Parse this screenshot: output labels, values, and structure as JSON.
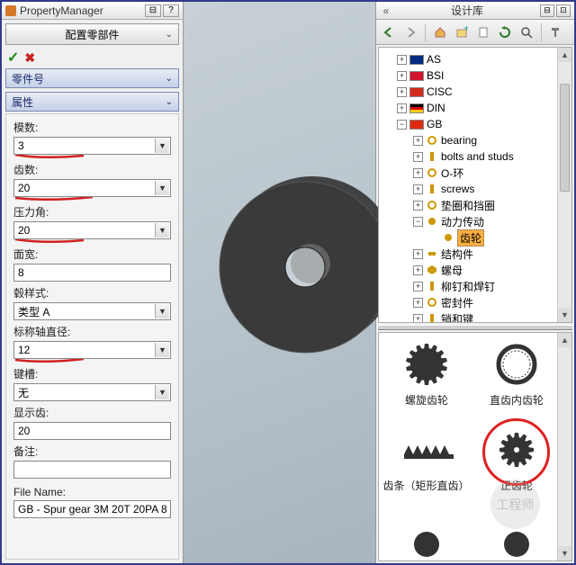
{
  "pm": {
    "title": "PropertyManager",
    "config_title": "配置零部件",
    "part_number_title": "零件号",
    "properties_title": "属性",
    "ok": "✓",
    "cancel": "✖",
    "fields": {
      "module": {
        "label": "模数:",
        "value": "3",
        "marked": true
      },
      "teeth": {
        "label": "齿数:",
        "value": "20",
        "marked": true
      },
      "pressure_angle": {
        "label": "压力角:",
        "value": "20",
        "marked": true
      },
      "face_width": {
        "label": "面宽:",
        "value": "8",
        "marked": false
      },
      "hub_style": {
        "label": "毂样式:",
        "value": "类型 A",
        "marked": false
      },
      "nominal_shaft_dia": {
        "label": "标称轴直径:",
        "value": "12",
        "marked": true
      },
      "keyway": {
        "label": "键槽:",
        "value": "无",
        "marked": false
      },
      "show_teeth": {
        "label": "显示齿:",
        "value": "20",
        "marked": false
      },
      "notes": {
        "label": "备注:",
        "value": "",
        "marked": false
      },
      "filename": {
        "label": "File Name:",
        "value": "GB - Spur gear 3M 20T 20PA 8",
        "marked": false
      }
    }
  },
  "lib": {
    "title": "设计库",
    "tree": {
      "as": "AS",
      "bsi": "BSI",
      "cisc": "CISC",
      "din": "DIN",
      "gb": "GB",
      "gb_children": {
        "bearing": "bearing",
        "bolts": "bolts and studs",
        "oring": "O-环",
        "screws": "screws",
        "washers": "垫圈和挡圈",
        "power": "动力传动",
        "gear": "齿轮",
        "struct": "结构件",
        "nut": "螺母",
        "rivets": "柳钉和焊钉",
        "seals": "密封件",
        "pins": "销和键"
      }
    },
    "flags": {
      "as": "#002b7f",
      "bsi": "#cf142b",
      "cisc": "#d52b1e",
      "din": "#000000",
      "gb": "#de2910"
    },
    "preview": {
      "helical": "螺旋齿轮",
      "internal": "直齿内齿轮",
      "rack": "齿条（矩形直齿）",
      "spur": "正齿轮"
    }
  },
  "colors": {
    "accent_red": "#d22020",
    "highlight": "#fbb040",
    "gear_fill": "#3a3a3a"
  }
}
